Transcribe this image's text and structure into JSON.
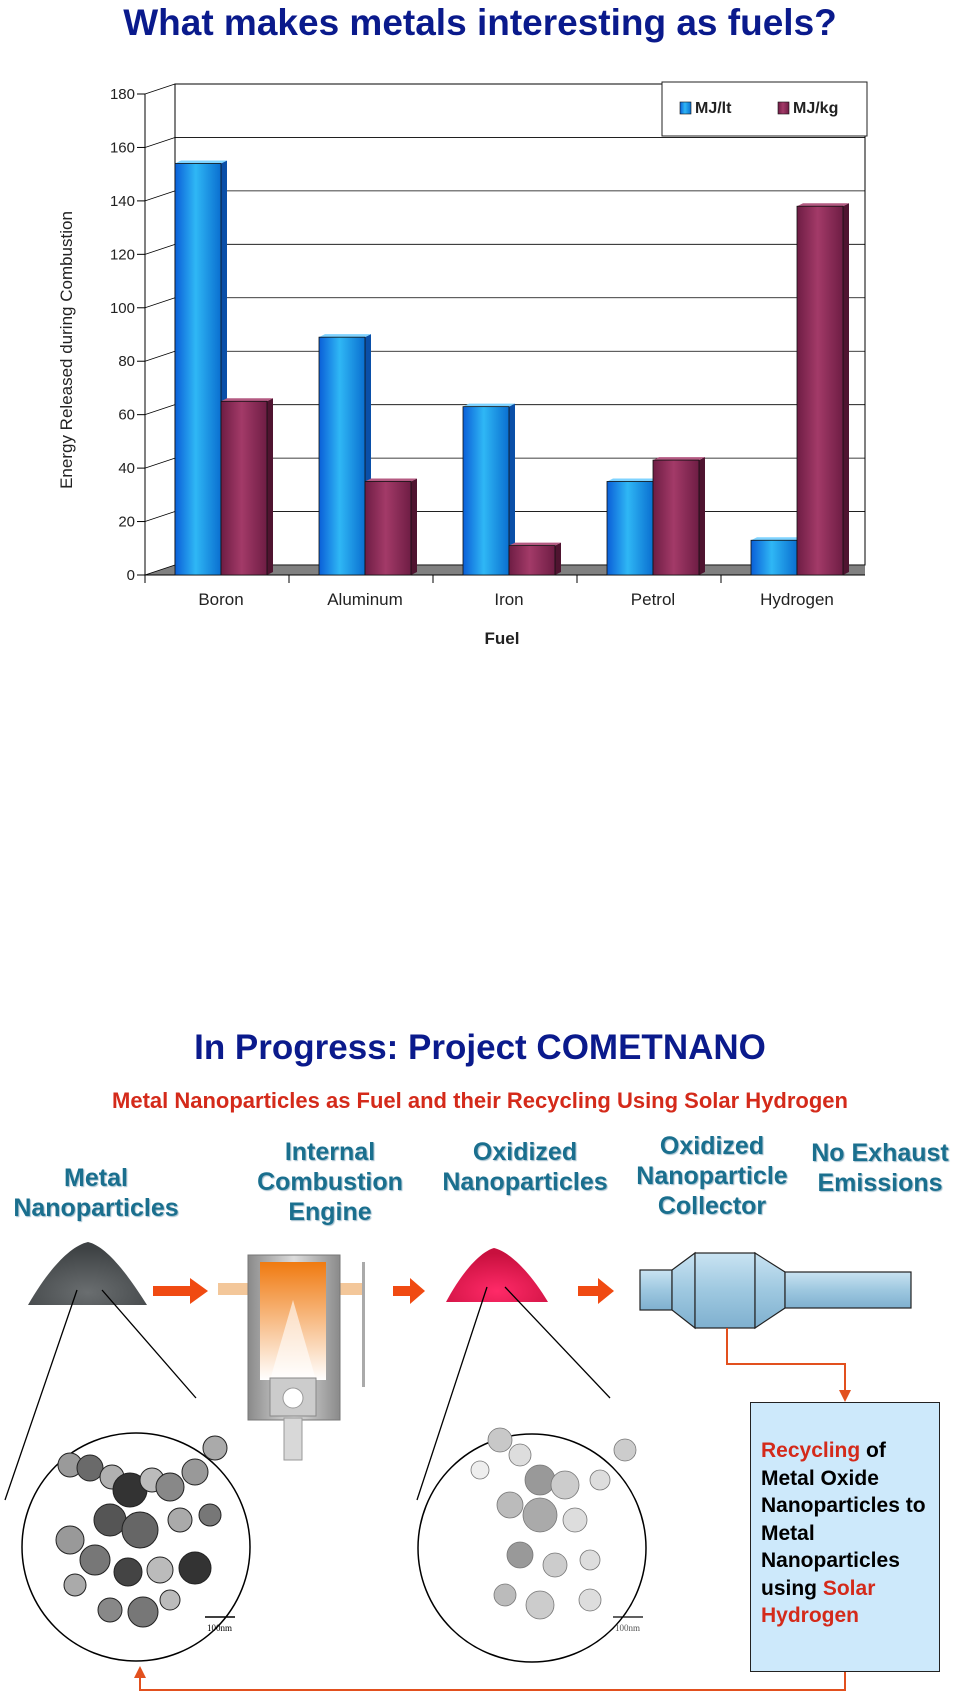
{
  "slide1": {
    "title": "What makes metals interesting as fuels?"
  },
  "chart_data": {
    "type": "bar",
    "categories": [
      "Boron",
      "Aluminum",
      "Iron",
      "Petrol",
      "Hydrogen"
    ],
    "series": [
      {
        "name": "MJ/lt",
        "values": [
          154,
          89,
          63,
          35,
          13
        ],
        "color": "#1e9be8"
      },
      {
        "name": "MJ/kg",
        "values": [
          65,
          35,
          11,
          43,
          138
        ],
        "color": "#8e2a55"
      }
    ],
    "ylabel": "Energy Released during Combustion",
    "xlabel": "Fuel",
    "ylim": [
      0,
      180
    ],
    "yticks": [
      0,
      20,
      40,
      60,
      80,
      100,
      120,
      140,
      160,
      180
    ],
    "grid": true,
    "legend": "top-right",
    "style": "3d-bars"
  },
  "slide2": {
    "title": "In Progress: Project COMETNANO",
    "subtitle": "Metal Nanoparticles as Fuel and their Recycling Using Solar Hydrogen",
    "steps": [
      {
        "lines": [
          "Metal",
          "Nanoparticles"
        ]
      },
      {
        "lines": [
          "Internal",
          "Combustion",
          "Engine"
        ]
      },
      {
        "lines": [
          "Oxidized",
          "Nanoparticles"
        ]
      },
      {
        "lines": [
          "Oxidized",
          "Nanoparticle",
          "Collector"
        ]
      },
      {
        "lines": [
          "No Exhaust",
          "Emissions"
        ]
      }
    ],
    "scale_bar_label": "100nm",
    "recycle": {
      "part1": "Recycling",
      "part2": " of Metal Oxide Nanoparticles to Metal Nanoparticles using ",
      "part3": "Solar Hydrogen"
    },
    "colors": {
      "arrow": "#f04a12",
      "metal_powder": "#5a5d5e",
      "oxide_powder": "#e8174f",
      "collector": "#a9cfe4",
      "box": "#cde9fb"
    }
  }
}
